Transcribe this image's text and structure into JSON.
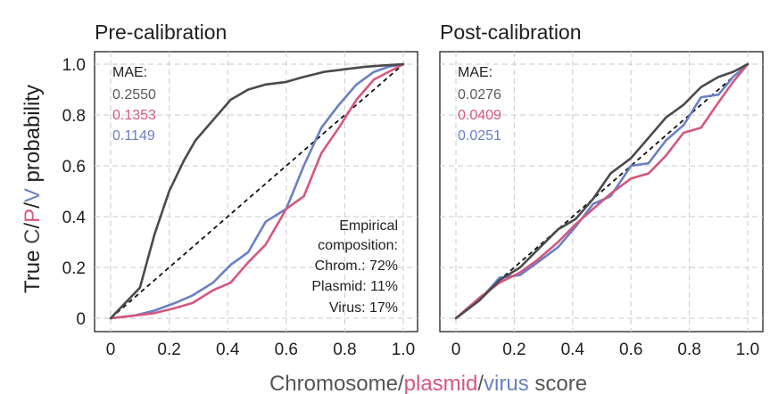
{
  "colors": {
    "chromosome": "#4a4a4a",
    "plasmid": "#d4577f",
    "virus": "#6a80c4",
    "text": "#1f1f1f",
    "grid": "#d3d3d3"
  },
  "xlabel": {
    "parts": [
      "Chromosome",
      "/",
      "plasmid",
      "/",
      "virus",
      " score"
    ]
  },
  "ylabel": {
    "parts": [
      "True ",
      "C",
      "/",
      "P",
      "/",
      "V",
      " probability"
    ]
  },
  "panels": [
    {
      "title": "Pre-calibration",
      "mae_title": "MAE:",
      "mae": [
        "0.2550",
        "0.1353",
        "0.1149"
      ],
      "composition": [
        "Empirical",
        "composition:",
        "Chrom.: 72%",
        "Plasmid: 11%",
        "Virus: 17%"
      ]
    },
    {
      "title": "Post-calibration",
      "mae_title": "MAE:",
      "mae": [
        "0.0276",
        "0.0409",
        "0.0251"
      ]
    }
  ],
  "chart_data": [
    {
      "type": "line",
      "title": "Pre-calibration",
      "xlabel": "Chromosome/plasmid/virus score",
      "ylabel": "True C/P/V probability",
      "xlim": [
        0,
        1.0
      ],
      "ylim": [
        0,
        1.0
      ],
      "xticks": [
        "0",
        "0.2",
        "0.4",
        "0.6",
        "0.8",
        "1.0"
      ],
      "yticks": [
        "0",
        "0.2",
        "0.4",
        "0.6",
        "0.8",
        "1.0"
      ],
      "grid": true,
      "reference_line": {
        "style": "dashed",
        "x": [
          0,
          1
        ],
        "y": [
          0,
          1
        ]
      },
      "series": [
        {
          "name": "Chromosome",
          "x": [
            0,
            0.1,
            0.15,
            0.2,
            0.25,
            0.29,
            0.35,
            0.41,
            0.47,
            0.53,
            0.6,
            0.66,
            0.73,
            0.8,
            0.87,
            0.93,
            1.0
          ],
          "y": [
            0,
            0.12,
            0.33,
            0.5,
            0.62,
            0.7,
            0.78,
            0.86,
            0.9,
            0.92,
            0.93,
            0.95,
            0.97,
            0.98,
            0.99,
            0.995,
            1.0
          ]
        },
        {
          "name": "Plasmid",
          "x": [
            0,
            0.08,
            0.15,
            0.22,
            0.28,
            0.35,
            0.41,
            0.47,
            0.53,
            0.6,
            0.66,
            0.72,
            0.78,
            0.84,
            0.9,
            0.95,
            1.0
          ],
          "y": [
            0,
            0.01,
            0.02,
            0.04,
            0.06,
            0.11,
            0.14,
            0.22,
            0.29,
            0.43,
            0.48,
            0.65,
            0.75,
            0.86,
            0.94,
            0.97,
            1.0
          ]
        },
        {
          "name": "Virus",
          "x": [
            0,
            0.08,
            0.15,
            0.22,
            0.28,
            0.35,
            0.41,
            0.47,
            0.53,
            0.6,
            0.66,
            0.72,
            0.78,
            0.84,
            0.9,
            0.95,
            1.0
          ],
          "y": [
            0,
            0.01,
            0.03,
            0.06,
            0.09,
            0.14,
            0.21,
            0.26,
            0.38,
            0.43,
            0.6,
            0.75,
            0.84,
            0.92,
            0.97,
            0.99,
            1.0
          ]
        }
      ]
    },
    {
      "type": "line",
      "title": "Post-calibration",
      "xlabel": "Chromosome/plasmid/virus score",
      "ylabel": "True C/P/V probability",
      "xlim": [
        0,
        1.0
      ],
      "ylim": [
        0,
        1.0
      ],
      "xticks": [
        "0",
        "0.2",
        "0.4",
        "0.6",
        "0.8",
        "1.0"
      ],
      "grid": true,
      "reference_line": {
        "style": "dashed",
        "x": [
          0,
          1
        ],
        "y": [
          0,
          1
        ]
      },
      "series": [
        {
          "name": "Chromosome",
          "x": [
            0,
            0.08,
            0.15,
            0.22,
            0.28,
            0.35,
            0.41,
            0.47,
            0.53,
            0.6,
            0.66,
            0.72,
            0.78,
            0.84,
            0.9,
            0.95,
            1.0
          ],
          "y": [
            0,
            0.07,
            0.15,
            0.2,
            0.27,
            0.35,
            0.39,
            0.47,
            0.57,
            0.63,
            0.71,
            0.79,
            0.84,
            0.91,
            0.95,
            0.97,
            1.0
          ]
        },
        {
          "name": "Plasmid",
          "x": [
            0,
            0.08,
            0.15,
            0.22,
            0.28,
            0.35,
            0.41,
            0.47,
            0.53,
            0.6,
            0.66,
            0.72,
            0.78,
            0.84,
            0.9,
            0.95,
            1.0
          ],
          "y": [
            0,
            0.08,
            0.14,
            0.18,
            0.23,
            0.3,
            0.37,
            0.43,
            0.49,
            0.55,
            0.57,
            0.64,
            0.73,
            0.75,
            0.85,
            0.93,
            1.0
          ]
        },
        {
          "name": "Virus",
          "x": [
            0,
            0.08,
            0.15,
            0.22,
            0.28,
            0.35,
            0.41,
            0.47,
            0.53,
            0.6,
            0.66,
            0.72,
            0.78,
            0.84,
            0.9,
            0.95,
            1.0
          ],
          "y": [
            0,
            0.07,
            0.16,
            0.17,
            0.22,
            0.28,
            0.36,
            0.45,
            0.48,
            0.6,
            0.61,
            0.7,
            0.76,
            0.87,
            0.88,
            0.95,
            1.0
          ]
        }
      ]
    }
  ]
}
